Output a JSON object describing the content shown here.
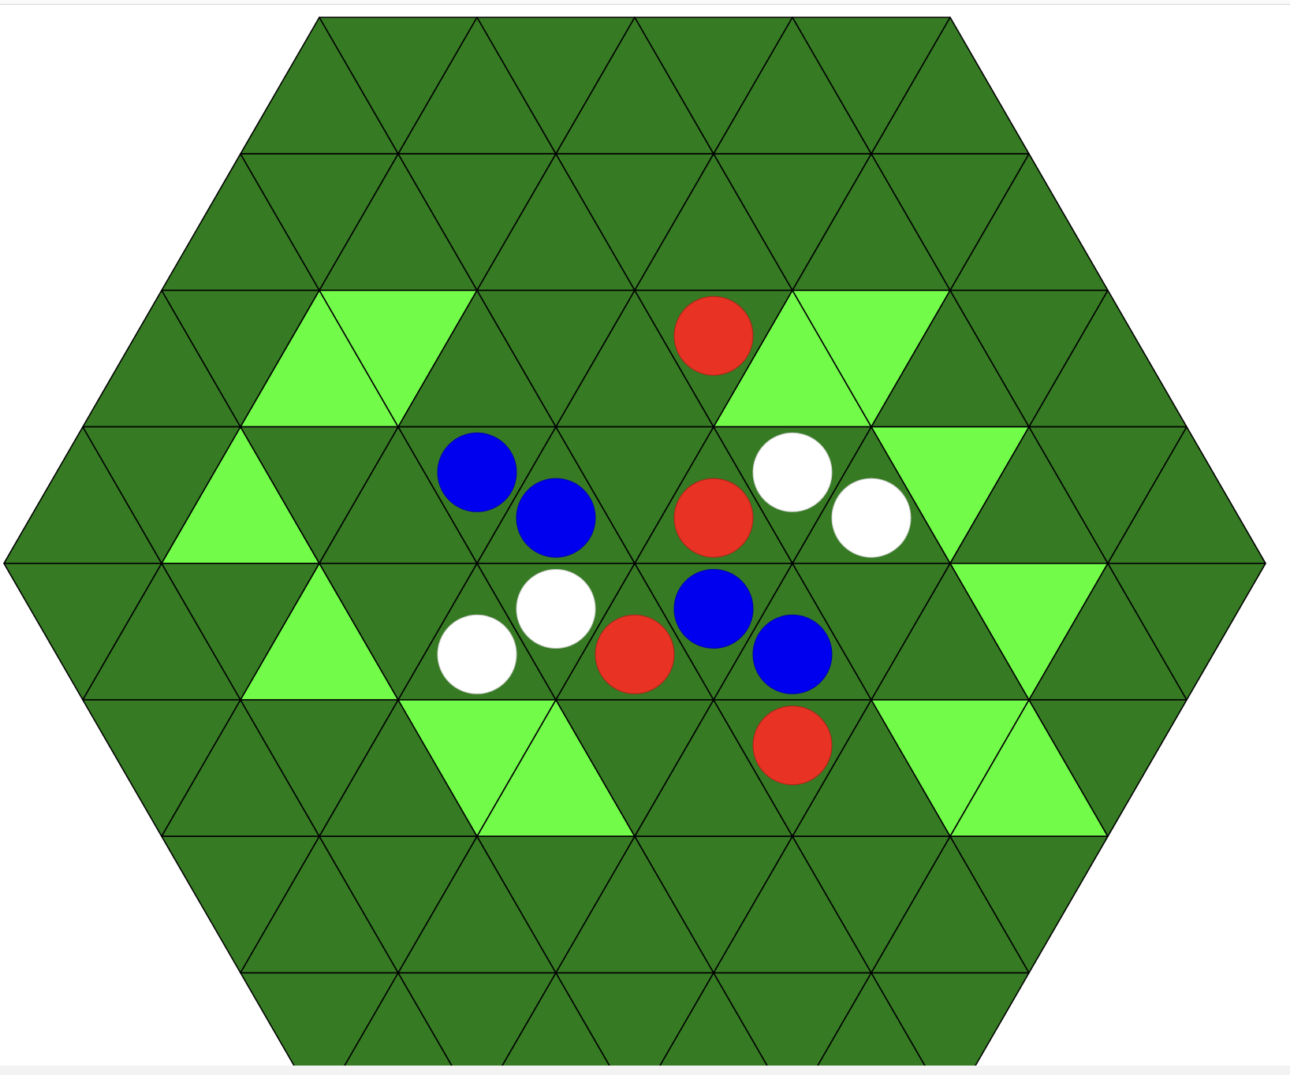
{
  "board": {
    "shape": "hexagon",
    "rows": 8,
    "colors": {
      "cell": "#367b23",
      "highlight": "#73fb4a",
      "grid_line": "#000000",
      "background": "#ffffff"
    },
    "highlighted_cells": [
      {
        "row": 2,
        "col": 2
      },
      {
        "row": 2,
        "col": 3
      },
      {
        "row": 2,
        "col": 8
      },
      {
        "row": 2,
        "col": 9
      },
      {
        "row": 3,
        "col": 2
      },
      {
        "row": 3,
        "col": 11
      },
      {
        "row": 4,
        "col": 3
      },
      {
        "row": 4,
        "col": 12
      },
      {
        "row": 5,
        "col": 4
      },
      {
        "row": 5,
        "col": 5
      },
      {
        "row": 5,
        "col": 10
      },
      {
        "row": 5,
        "col": 11
      }
    ]
  },
  "pieces": [
    {
      "color": "red",
      "fill": "#e83224",
      "row": 2,
      "col": 7
    },
    {
      "color": "red",
      "fill": "#e83224",
      "row": 3,
      "col": 8
    },
    {
      "color": "blue",
      "fill": "#0000ee",
      "row": 3,
      "col": 5
    },
    {
      "color": "blue",
      "fill": "#0000ee",
      "row": 3,
      "col": 6
    },
    {
      "color": "white",
      "fill": "#ffffff",
      "row": 3,
      "col": 9
    },
    {
      "color": "white",
      "fill": "#ffffff",
      "row": 3,
      "col": 10
    },
    {
      "color": "white",
      "fill": "#ffffff",
      "row": 4,
      "col": 5
    },
    {
      "color": "white",
      "fill": "#ffffff",
      "row": 4,
      "col": 6
    },
    {
      "color": "red",
      "fill": "#e83224",
      "row": 4,
      "col": 7
    },
    {
      "color": "blue",
      "fill": "#0000ee",
      "row": 4,
      "col": 8
    },
    {
      "color": "blue",
      "fill": "#0000ee",
      "row": 4,
      "col": 9
    },
    {
      "color": "red",
      "fill": "#e83224",
      "row": 5,
      "col": 8
    }
  ]
}
